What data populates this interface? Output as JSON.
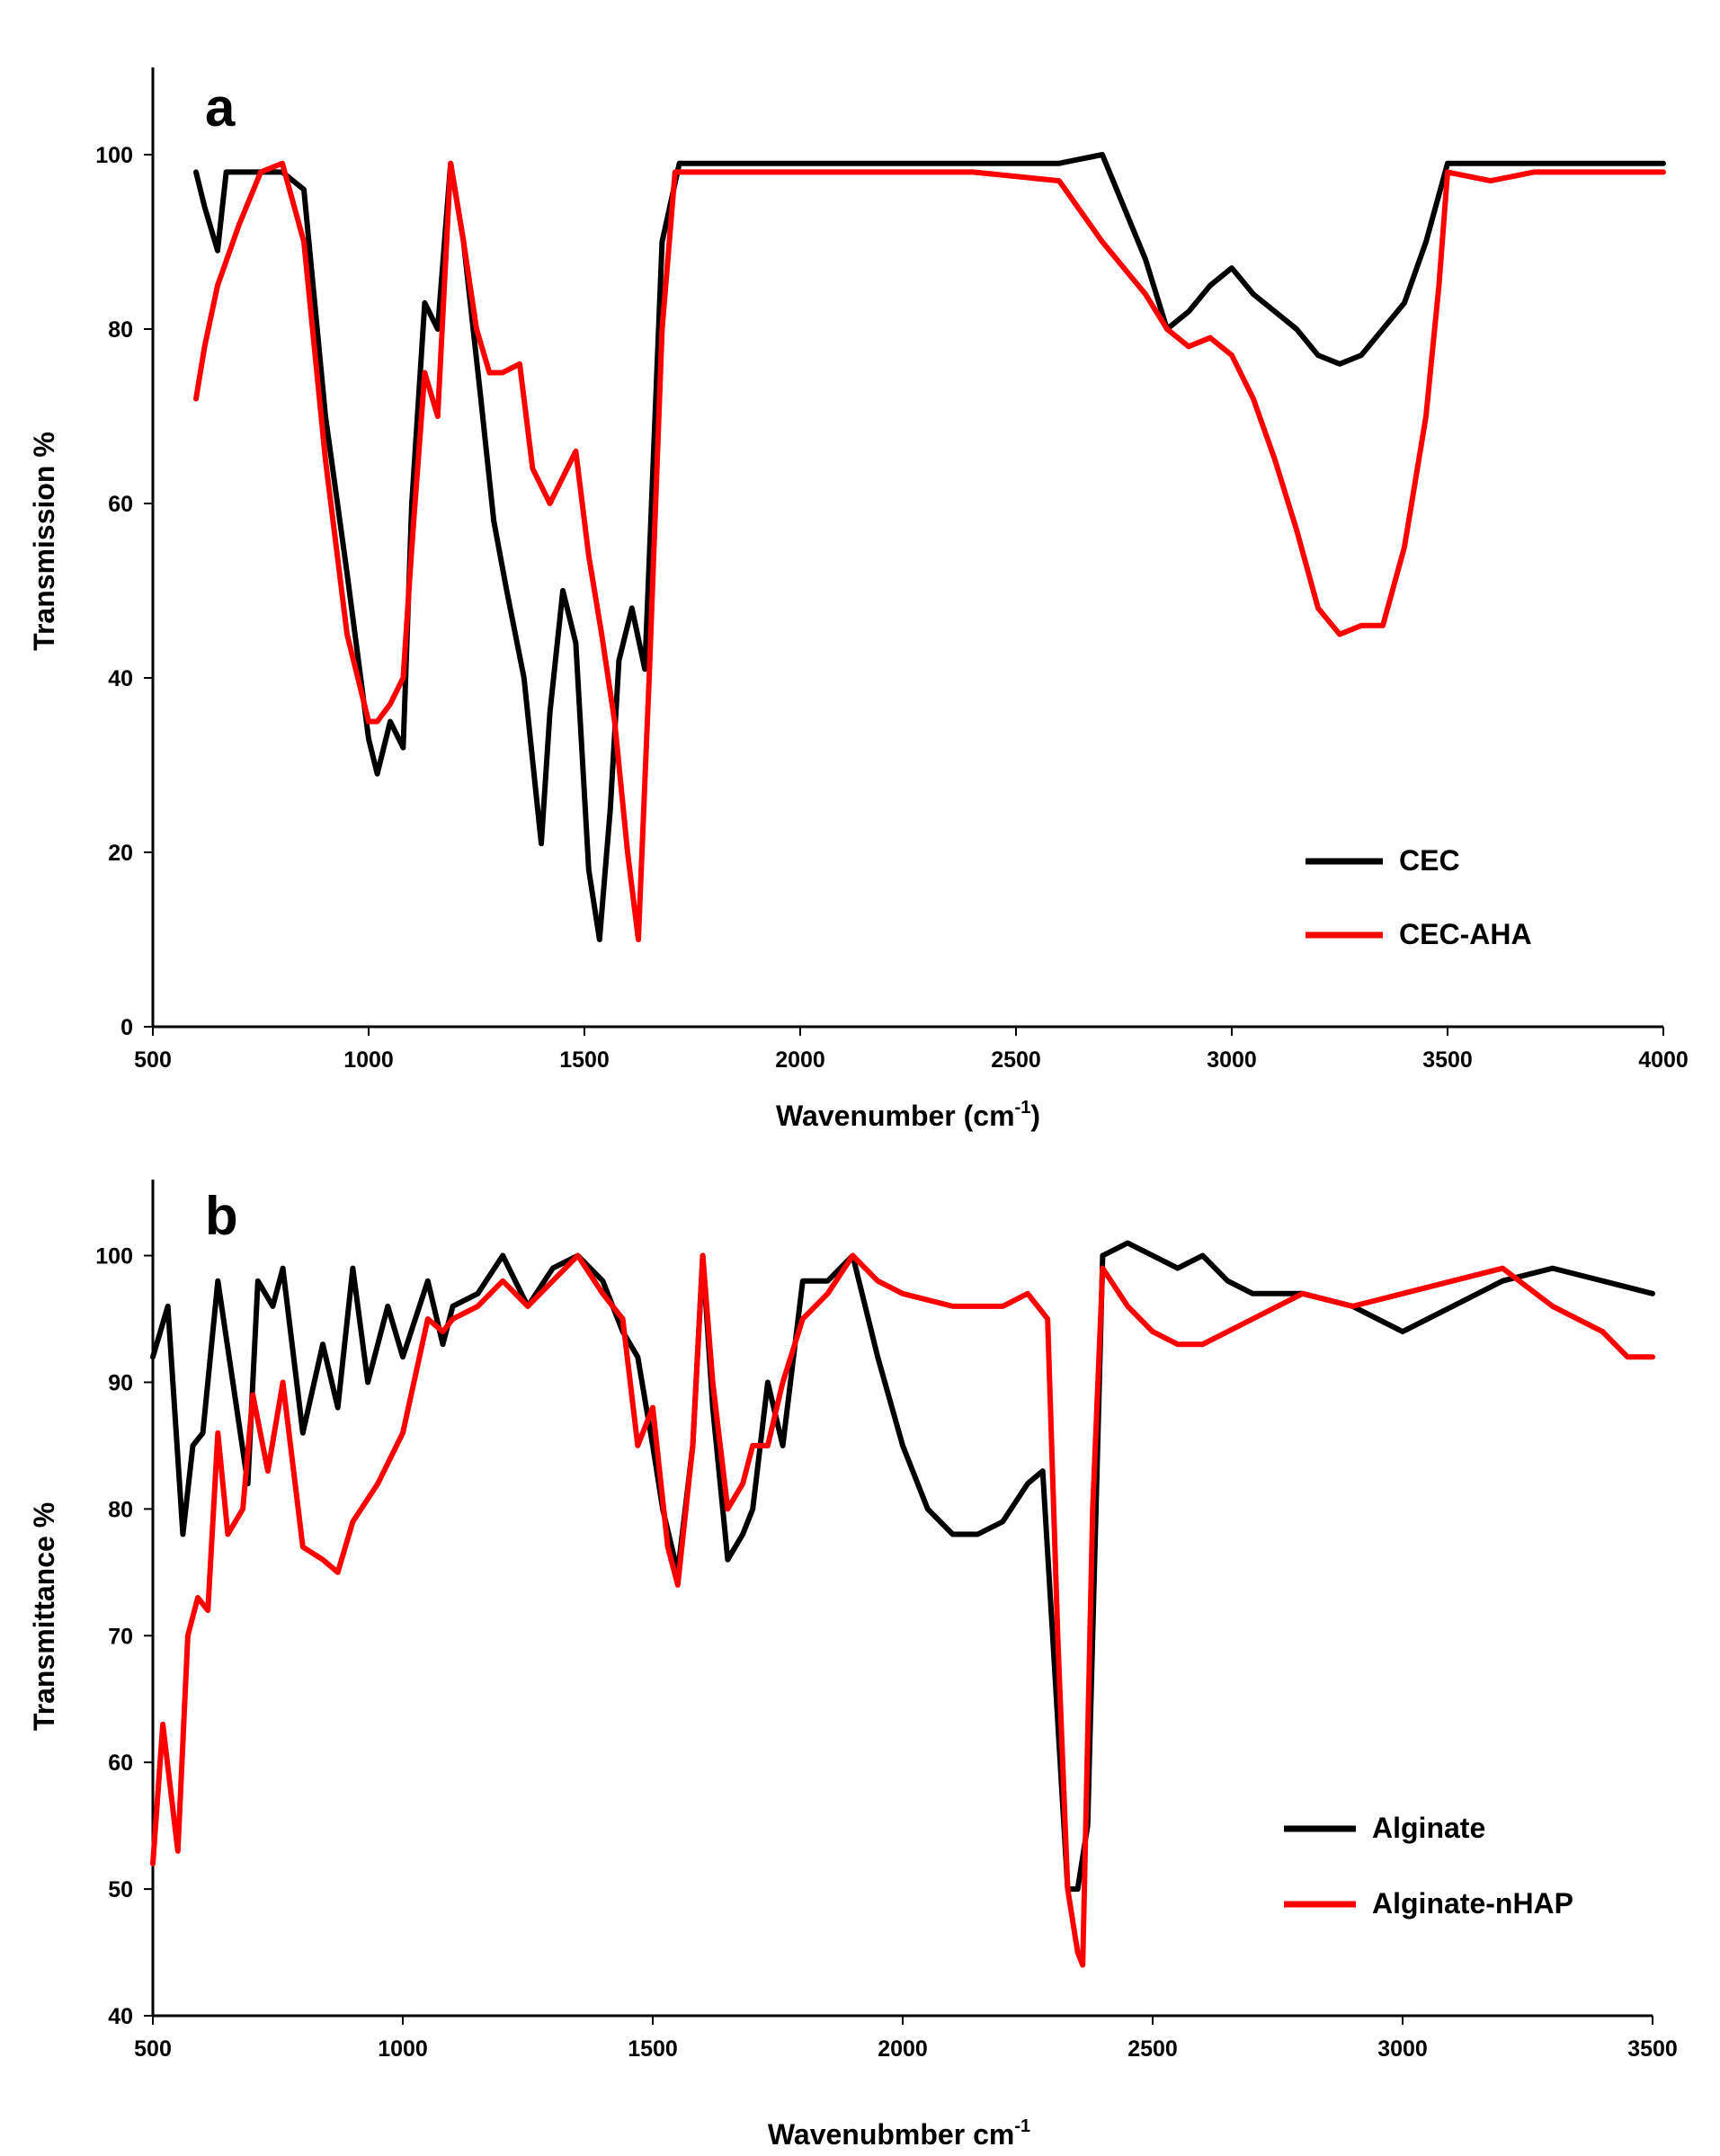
{
  "chart_data": [
    {
      "type": "line",
      "panel_label": "a",
      "xlabel": "Wavenumber (cm",
      "xlabel_sup": "-1",
      "xlabel_suffix": ")",
      "ylabel": "Transmission %",
      "xlim": [
        500,
        4000
      ],
      "ylim": [
        0,
        110
      ],
      "xticks": [
        500,
        1000,
        1500,
        2000,
        2500,
        3000,
        3500,
        4000
      ],
      "yticks": [
        0,
        20,
        40,
        60,
        80,
        100
      ],
      "legend_position": "lower-right",
      "series": [
        {
          "name": "CEC",
          "color": "#000000",
          "x": [
            600,
            620,
            650,
            670,
            700,
            800,
            850,
            900,
            950,
            1000,
            1020,
            1050,
            1080,
            1100,
            1130,
            1160,
            1190,
            1220,
            1260,
            1290,
            1320,
            1360,
            1400,
            1420,
            1450,
            1480,
            1510,
            1535,
            1560,
            1580,
            1610,
            1640,
            1680,
            1720,
            1800,
            2000,
            2200,
            2400,
            2600,
            2700,
            2800,
            2850,
            2900,
            2950,
            3000,
            3050,
            3100,
            3150,
            3200,
            3250,
            3300,
            3350,
            3400,
            3450,
            3500,
            3700,
            4000
          ],
          "y": [
            98,
            94,
            89,
            98,
            98,
            98,
            96,
            70,
            52,
            33,
            29,
            35,
            32,
            60,
            83,
            80,
            99,
            90,
            72,
            58,
            50,
            40,
            21,
            36,
            50,
            44,
            18,
            10,
            25,
            42,
            48,
            41,
            90,
            99,
            99,
            99,
            99,
            99,
            99,
            100,
            88,
            80,
            82,
            85,
            87,
            84,
            82,
            80,
            77,
            76,
            77,
            80,
            83,
            90,
            99,
            99,
            99
          ]
        },
        {
          "name": "CEC-AHA",
          "color": "#ff0000",
          "x": [
            600,
            620,
            650,
            700,
            750,
            800,
            850,
            900,
            950,
            1000,
            1020,
            1050,
            1080,
            1100,
            1130,
            1160,
            1190,
            1220,
            1250,
            1280,
            1310,
            1350,
            1380,
            1420,
            1450,
            1480,
            1510,
            1540,
            1570,
            1600,
            1625,
            1650,
            1680,
            1710,
            1800,
            2000,
            2200,
            2400,
            2600,
            2700,
            2800,
            2850,
            2900,
            2950,
            3000,
            3050,
            3100,
            3150,
            3200,
            3250,
            3300,
            3350,
            3400,
            3450,
            3480,
            3500,
            3600,
            3700,
            4000
          ],
          "y": [
            72,
            78,
            85,
            92,
            98,
            99,
            90,
            65,
            45,
            35,
            35,
            37,
            40,
            55,
            75,
            70,
            99,
            90,
            80,
            75,
            75,
            76,
            64,
            60,
            63,
            66,
            54,
            45,
            35,
            20,
            10,
            40,
            80,
            98,
            98,
            98,
            98,
            98,
            97,
            90,
            84,
            80,
            78,
            79,
            77,
            72,
            65,
            57,
            48,
            45,
            46,
            46,
            55,
            70,
            85,
            98,
            97,
            98,
            98
          ]
        }
      ]
    },
    {
      "type": "line",
      "panel_label": "b",
      "xlabel": "Wavenubmber cm",
      "xlabel_sup": "-1",
      "xlabel_suffix": "",
      "ylabel": "Transmittance %",
      "xlim": [
        500,
        3500
      ],
      "ylim": [
        40,
        106
      ],
      "xticks": [
        500,
        1000,
        1500,
        2000,
        2500,
        3000,
        3500
      ],
      "yticks": [
        40,
        50,
        60,
        70,
        80,
        90,
        100
      ],
      "legend_position": "lower-right",
      "series": [
        {
          "name": "Alginate",
          "color": "#000000",
          "x": [
            500,
            530,
            560,
            580,
            600,
            630,
            660,
            690,
            710,
            740,
            760,
            800,
            840,
            870,
            900,
            930,
            970,
            1000,
            1050,
            1080,
            1100,
            1150,
            1200,
            1250,
            1300,
            1350,
            1400,
            1440,
            1470,
            1500,
            1520,
            1550,
            1580,
            1600,
            1620,
            1650,
            1680,
            1700,
            1730,
            1760,
            1800,
            1850,
            1900,
            1950,
            2000,
            2050,
            2100,
            2150,
            2200,
            2250,
            2280,
            2300,
            2330,
            2350,
            2370,
            2400,
            2450,
            2500,
            2550,
            2600,
            2650,
            2700,
            2800,
            2900,
            3000,
            3100,
            3200,
            3300,
            3400,
            3500
          ],
          "y": [
            92,
            96,
            78,
            85,
            86,
            98,
            90,
            82,
            98,
            96,
            99,
            86,
            93,
            88,
            99,
            90,
            96,
            92,
            98,
            93,
            96,
            97,
            100,
            96,
            99,
            100,
            98,
            94,
            92,
            85,
            80,
            75,
            85,
            100,
            88,
            76,
            78,
            80,
            90,
            85,
            98,
            98,
            100,
            92,
            85,
            80,
            78,
            78,
            79,
            82,
            83,
            70,
            50,
            50,
            55,
            100,
            101,
            100,
            99,
            100,
            98,
            97,
            97,
            96,
            94,
            96,
            98,
            99,
            98,
            97
          ]
        },
        {
          "name": "Alginate-nHAP",
          "color": "#ff0000",
          "x": [
            500,
            520,
            550,
            570,
            590,
            610,
            630,
            650,
            680,
            700,
            730,
            760,
            800,
            840,
            870,
            900,
            950,
            1000,
            1050,
            1080,
            1100,
            1150,
            1200,
            1250,
            1300,
            1350,
            1400,
            1440,
            1470,
            1500,
            1530,
            1550,
            1580,
            1600,
            1620,
            1650,
            1680,
            1700,
            1730,
            1760,
            1800,
            1850,
            1900,
            1950,
            2000,
            2100,
            2200,
            2250,
            2290,
            2310,
            2330,
            2350,
            2360,
            2380,
            2400,
            2450,
            2500,
            2550,
            2600,
            2700,
            2800,
            2900,
            3000,
            3100,
            3200,
            3300,
            3400,
            3450,
            3500
          ],
          "y": [
            52,
            63,
            53,
            70,
            73,
            72,
            86,
            78,
            80,
            89,
            83,
            90,
            77,
            76,
            75,
            79,
            82,
            86,
            95,
            94,
            95,
            96,
            98,
            96,
            98,
            100,
            97,
            95,
            85,
            88,
            77,
            74,
            85,
            100,
            90,
            80,
            82,
            85,
            85,
            90,
            95,
            97,
            100,
            98,
            97,
            96,
            96,
            97,
            95,
            70,
            50,
            45,
            44,
            80,
            99,
            96,
            94,
            93,
            93,
            95,
            97,
            96,
            97,
            98,
            99,
            96,
            94,
            92,
            92
          ]
        }
      ]
    }
  ]
}
